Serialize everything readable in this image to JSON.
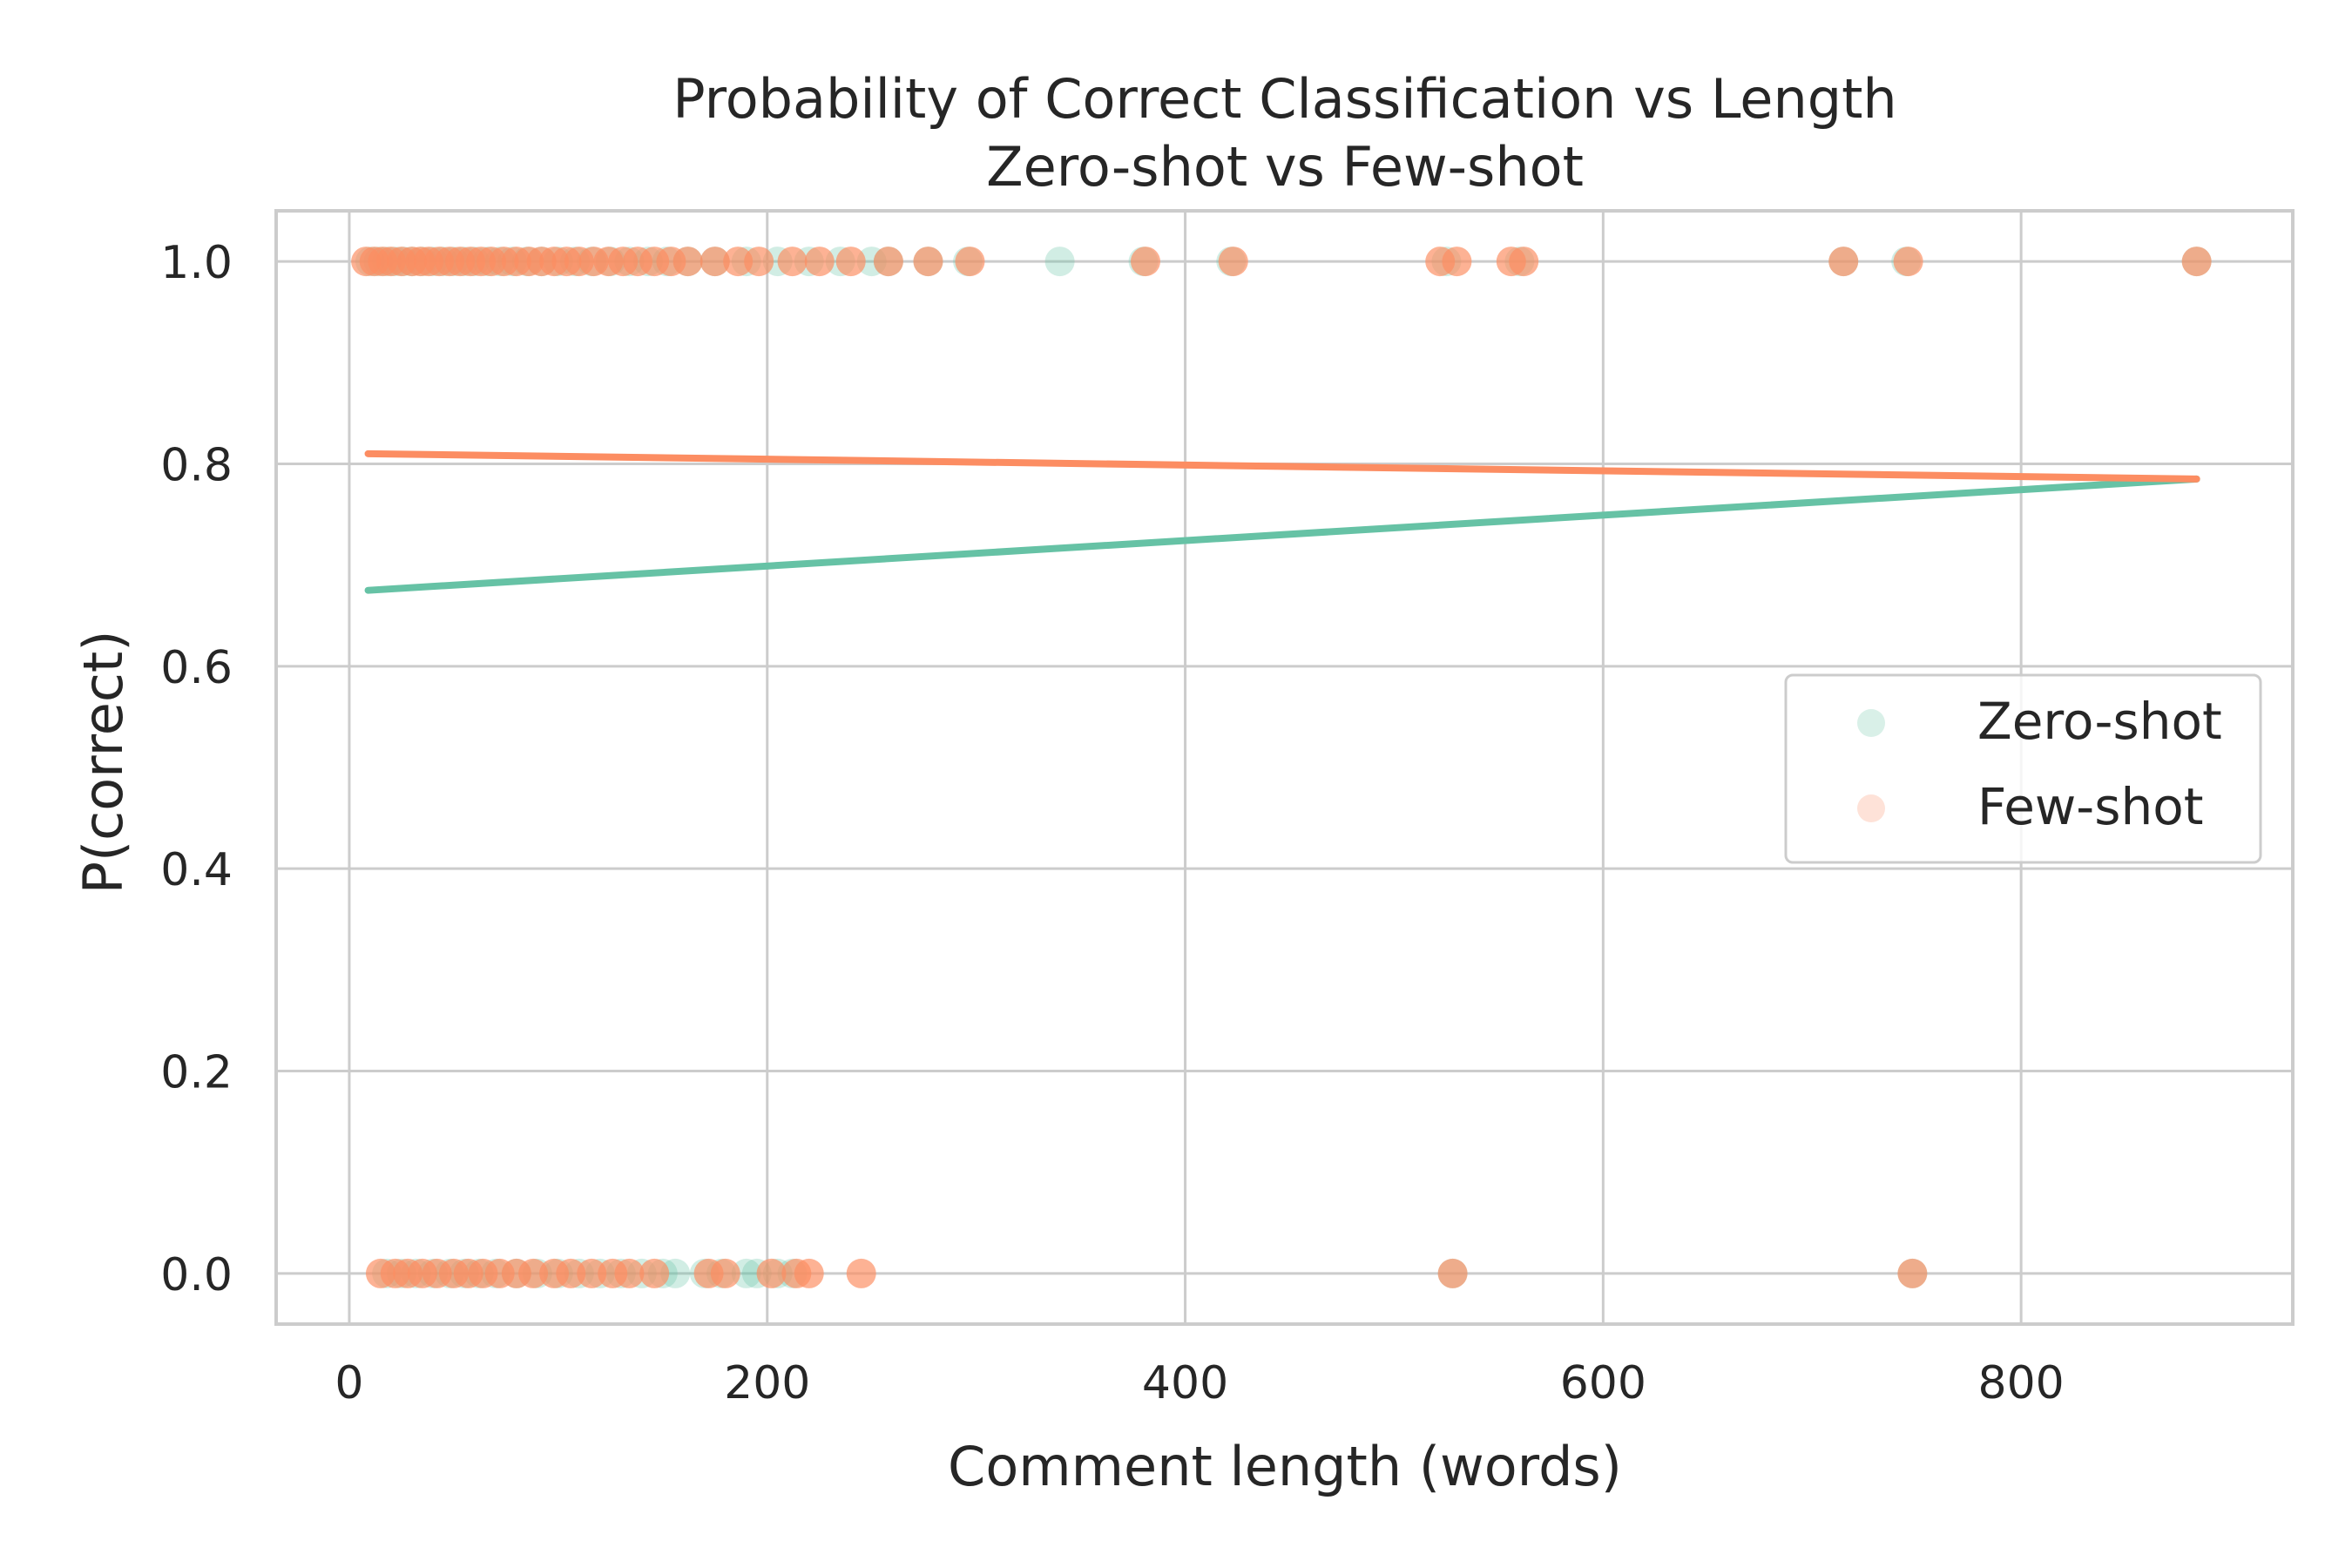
{
  "chart_data": {
    "type": "scatter",
    "title": "Probability of Correct Classification vs Length",
    "subtitle": "Zero-shot vs Few-shot",
    "xlabel": "Comment length (words)",
    "ylabel": "P(correct)",
    "xlim": [
      -35,
      930
    ],
    "ylim": [
      -0.05,
      1.05
    ],
    "xticks": [
      0,
      200,
      400,
      600,
      800
    ],
    "xtick_labels": [
      "0",
      "200",
      "400",
      "600",
      "800"
    ],
    "yticks": [
      0.0,
      0.2,
      0.4,
      0.6,
      0.8,
      1.0
    ],
    "ytick_labels": [
      "0.0",
      "0.2",
      "0.4",
      "0.6",
      "0.8",
      "1.0"
    ],
    "grid": true,
    "legend_position": "center-right",
    "series": [
      {
        "name": "Zero-shot",
        "color": "#66c2a5",
        "points": [
          [
            10,
            1
          ],
          [
            14,
            1
          ],
          [
            18,
            1
          ],
          [
            22,
            1
          ],
          [
            26,
            1
          ],
          [
            30,
            1
          ],
          [
            35,
            1
          ],
          [
            40,
            1
          ],
          [
            45,
            1
          ],
          [
            50,
            1
          ],
          [
            55,
            1
          ],
          [
            60,
            1
          ],
          [
            66,
            1
          ],
          [
            72,
            1
          ],
          [
            78,
            1
          ],
          [
            85,
            1
          ],
          [
            92,
            1
          ],
          [
            100,
            1
          ],
          [
            108,
            1
          ],
          [
            116,
            1
          ],
          [
            125,
            1
          ],
          [
            134,
            1
          ],
          [
            143,
            1
          ],
          [
            152,
            1
          ],
          [
            162,
            1
          ],
          [
            175,
            1
          ],
          [
            190,
            1
          ],
          [
            205,
            1
          ],
          [
            220,
            1
          ],
          [
            235,
            1
          ],
          [
            250,
            1
          ],
          [
            258,
            1
          ],
          [
            277,
            1
          ],
          [
            296,
            1
          ],
          [
            340,
            1
          ],
          [
            380,
            1
          ],
          [
            422,
            1
          ],
          [
            525,
            1
          ],
          [
            560,
            1
          ],
          [
            715,
            1
          ],
          [
            745,
            1
          ],
          [
            884,
            1
          ],
          [
            18,
            0
          ],
          [
            25,
            0
          ],
          [
            32,
            0
          ],
          [
            40,
            0
          ],
          [
            48,
            0
          ],
          [
            55,
            0
          ],
          [
            62,
            0
          ],
          [
            70,
            0
          ],
          [
            80,
            0
          ],
          [
            90,
            0
          ],
          [
            100,
            0
          ],
          [
            110,
            0
          ],
          [
            120,
            0
          ],
          [
            130,
            0
          ],
          [
            140,
            0
          ],
          [
            150,
            0
          ],
          [
            156,
            0
          ],
          [
            170,
            0
          ],
          [
            178,
            0
          ],
          [
            190,
            0
          ],
          [
            195,
            0
          ],
          [
            205,
            0
          ],
          [
            212,
            0
          ],
          [
            528,
            0
          ],
          [
            748,
            0
          ]
        ],
        "trend": [
          [
            9,
            0.675
          ],
          [
            884,
            0.785
          ]
        ]
      },
      {
        "name": "Few-shot",
        "color": "#fc8d62",
        "points": [
          [
            8,
            1
          ],
          [
            12,
            1
          ],
          [
            16,
            1
          ],
          [
            20,
            1
          ],
          [
            25,
            1
          ],
          [
            30,
            1
          ],
          [
            34,
            1
          ],
          [
            38,
            1
          ],
          [
            43,
            1
          ],
          [
            48,
            1
          ],
          [
            53,
            1
          ],
          [
            58,
            1
          ],
          [
            63,
            1
          ],
          [
            68,
            1
          ],
          [
            74,
            1
          ],
          [
            80,
            1
          ],
          [
            86,
            1
          ],
          [
            92,
            1
          ],
          [
            98,
            1
          ],
          [
            104,
            1
          ],
          [
            110,
            1
          ],
          [
            117,
            1
          ],
          [
            124,
            1
          ],
          [
            131,
            1
          ],
          [
            138,
            1
          ],
          [
            146,
            1
          ],
          [
            154,
            1
          ],
          [
            162,
            1
          ],
          [
            175,
            1
          ],
          [
            186,
            1
          ],
          [
            196,
            1
          ],
          [
            212,
            1
          ],
          [
            225,
            1
          ],
          [
            240,
            1
          ],
          [
            258,
            1
          ],
          [
            277,
            1
          ],
          [
            297,
            1
          ],
          [
            381,
            1
          ],
          [
            423,
            1
          ],
          [
            522,
            1
          ],
          [
            530,
            1
          ],
          [
            556,
            1
          ],
          [
            562,
            1
          ],
          [
            715,
            1
          ],
          [
            746,
            1
          ],
          [
            884,
            1
          ],
          [
            15,
            0
          ],
          [
            22,
            0
          ],
          [
            28,
            0
          ],
          [
            35,
            0
          ],
          [
            42,
            0
          ],
          [
            50,
            0
          ],
          [
            57,
            0
          ],
          [
            64,
            0
          ],
          [
            72,
            0
          ],
          [
            80,
            0
          ],
          [
            88,
            0
          ],
          [
            98,
            0
          ],
          [
            106,
            0
          ],
          [
            116,
            0
          ],
          [
            126,
            0
          ],
          [
            134,
            0
          ],
          [
            146,
            0
          ],
          [
            172,
            0
          ],
          [
            180,
            0
          ],
          [
            202,
            0
          ],
          [
            214,
            0
          ],
          [
            220,
            0
          ],
          [
            245,
            0
          ],
          [
            528,
            0
          ],
          [
            748,
            0
          ]
        ],
        "trend": [
          [
            9,
            0.81
          ],
          [
            884,
            0.785
          ]
        ]
      }
    ]
  }
}
